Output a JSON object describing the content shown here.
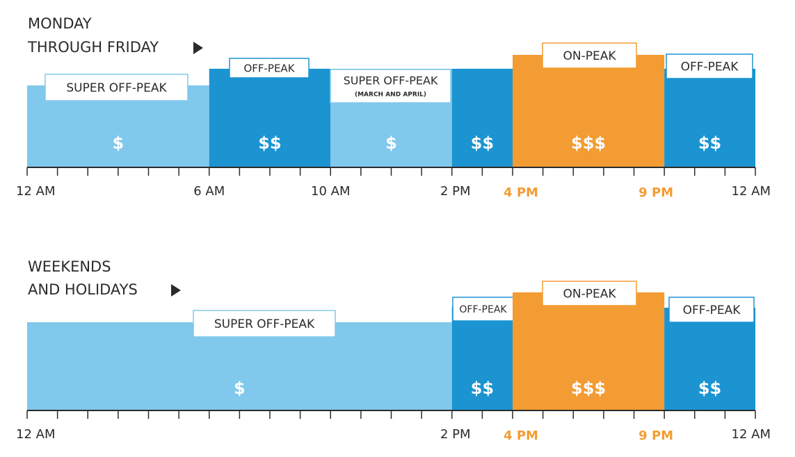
{
  "sections": [
    {
      "heading": [
        "MONDAY",
        "THROUGH FRIDAY"
      ],
      "segments": [
        {
          "label": "SUPER OFF-PEAK",
          "price": "$"
        },
        {
          "label": "OFF-PEAK",
          "price": "$$"
        },
        {
          "label": "SUPER OFF-PEAK",
          "note": "(MARCH AND APRIL)",
          "price": "$"
        },
        {
          "price": "$$"
        },
        {
          "label": "ON-PEAK",
          "price": "$$$"
        },
        {
          "label": "OFF-PEAK",
          "price": "$$"
        }
      ],
      "times": [
        "12 AM",
        "6 AM",
        "10 AM",
        "2 PM",
        "4 PM",
        "9 PM",
        "12 AM"
      ]
    },
    {
      "heading": [
        "WEEKENDS",
        "AND HOLIDAYS"
      ],
      "segments": [
        {
          "label": "SUPER OFF-PEAK",
          "price": "$"
        },
        {
          "label": "OFF-PEAK",
          "price": "$$"
        },
        {
          "label": "ON-PEAK",
          "price": "$$$"
        },
        {
          "label": "OFF-PEAK",
          "price": "$$"
        }
      ],
      "times": [
        "12 AM",
        "2 PM",
        "4 PM",
        "9 PM",
        "12 AM"
      ]
    }
  ]
}
